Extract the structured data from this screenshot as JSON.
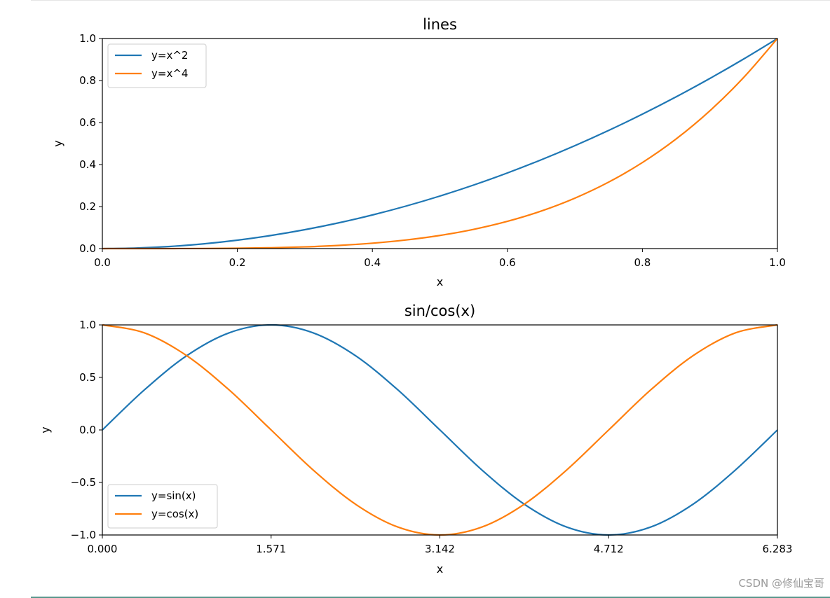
{
  "chart_data": [
    {
      "type": "line",
      "title": "lines",
      "xlabel": "x",
      "ylabel": "y",
      "xlim": [
        0,
        1
      ],
      "ylim": [
        0,
        1
      ],
      "xticks": [
        "0.0",
        "0.2",
        "0.4",
        "0.6",
        "0.8",
        "1.0"
      ],
      "yticks": [
        "0.0",
        "0.2",
        "0.4",
        "0.6",
        "0.8",
        "1.0"
      ],
      "legend_location": "upper left",
      "series": [
        {
          "name": "y=x^2",
          "color": "#1f77b4",
          "x": [
            0,
            0.05,
            0.1,
            0.15,
            0.2,
            0.25,
            0.3,
            0.35,
            0.4,
            0.45,
            0.5,
            0.55,
            0.6,
            0.65,
            0.7,
            0.75,
            0.8,
            0.85,
            0.9,
            0.95,
            1
          ],
          "values": [
            0,
            0.0025,
            0.01,
            0.0225,
            0.04,
            0.0625,
            0.09,
            0.1225,
            0.16,
            0.2025,
            0.25,
            0.3025,
            0.36,
            0.4225,
            0.49,
            0.5625,
            0.64,
            0.7225,
            0.81,
            0.9025,
            1
          ]
        },
        {
          "name": "y=x^4",
          "color": "#ff7f0e",
          "x": [
            0,
            0.05,
            0.1,
            0.15,
            0.2,
            0.25,
            0.3,
            0.35,
            0.4,
            0.45,
            0.5,
            0.55,
            0.6,
            0.65,
            0.7,
            0.75,
            0.8,
            0.85,
            0.9,
            0.95,
            1
          ],
          "values": [
            0,
            6.3e-06,
            0.0001,
            0.0005,
            0.0016,
            0.0039,
            0.0081,
            0.015,
            0.0256,
            0.041,
            0.0625,
            0.0915,
            0.1296,
            0.1785,
            0.2401,
            0.3164,
            0.4096,
            0.522,
            0.6561,
            0.8145,
            1
          ]
        }
      ]
    },
    {
      "type": "line",
      "title": "sin/cos(x)",
      "xlabel": "x",
      "ylabel": "y",
      "xlim": [
        0,
        6.283
      ],
      "ylim": [
        -1,
        1
      ],
      "xticks": [
        "0.000",
        "1.571",
        "3.142",
        "4.712",
        "6.283"
      ],
      "yticks": [
        "−1.0",
        "−0.5",
        "0.0",
        "0.5",
        "1.0"
      ],
      "legend_location": "lower left",
      "series": [
        {
          "name": "y=sin(x)",
          "color": "#1f77b4",
          "x": [
            0,
            0.3927,
            0.7854,
            1.1781,
            1.5708,
            1.9635,
            2.3562,
            2.7489,
            3.1416,
            3.5343,
            3.927,
            4.3197,
            4.7124,
            5.1051,
            5.4978,
            5.8905,
            6.2832
          ],
          "values": [
            0,
            0.3827,
            0.7071,
            0.9239,
            1,
            0.9239,
            0.7071,
            0.3827,
            0,
            -0.3827,
            -0.7071,
            -0.9239,
            -1,
            -0.9239,
            -0.7071,
            -0.3827,
            0
          ]
        },
        {
          "name": "y=cos(x)",
          "color": "#ff7f0e",
          "x": [
            0,
            0.3927,
            0.7854,
            1.1781,
            1.5708,
            1.9635,
            2.3562,
            2.7489,
            3.1416,
            3.5343,
            3.927,
            4.3197,
            4.7124,
            5.1051,
            5.4978,
            5.8905,
            6.2832
          ],
          "values": [
            1,
            0.9239,
            0.7071,
            0.3827,
            0,
            -0.3827,
            -0.7071,
            -0.9239,
            -1,
            -0.9239,
            -0.7071,
            -0.3827,
            0,
            0.3827,
            0.7071,
            0.9239,
            1
          ]
        }
      ]
    }
  ],
  "watermark": "CSDN @修仙宝哥"
}
